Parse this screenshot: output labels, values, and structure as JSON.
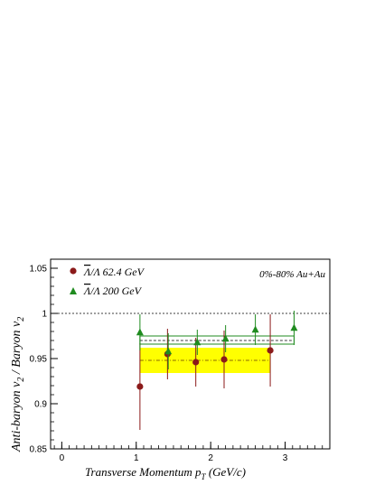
{
  "chart_data": {
    "type": "scatter",
    "xlabel_main": "Transverse Momentum p",
    "xlabel_sub": "T",
    "xlabel_unit": " (GeV/c)",
    "ylabel_a": "Anti-baryon v",
    "ylabel_a_sub": "2",
    "ylabel_b": " / Baryon v",
    "ylabel_b_sub": "2",
    "xlim": [
      -0.15,
      3.6
    ],
    "ylim": [
      0.85,
      1.06
    ],
    "xticks": [
      0,
      1,
      2,
      3
    ],
    "yticks": [
      0.85,
      0.9,
      0.95,
      1,
      1.05
    ],
    "ytick_labels": [
      "0.85",
      "0.9",
      "0.95",
      "1",
      "1.05"
    ],
    "annotation": "0%-80% Au+Au",
    "reference_line": 1.0,
    "series": [
      {
        "name": "Λ/Λ 62.4 GeV",
        "name_bar": "Λ",
        "name_rest": "/Λ 62.4 GeV",
        "marker": "circle",
        "color": "#8b1a1a",
        "x": [
          1.05,
          1.42,
          1.8,
          2.18,
          2.8
        ],
        "y": [
          0.919,
          0.955,
          0.946,
          0.949,
          0.959
        ],
        "yerr": [
          0.048,
          0.028,
          0.027,
          0.032,
          0.04
        ],
        "fit": {
          "x": [
            1.05,
            2.8
          ],
          "y": 0.948,
          "band": [
            0.934,
            0.962
          ],
          "color": "#ffff00"
        }
      },
      {
        "name": "Λ/Λ 200 GeV",
        "name_bar": "Λ",
        "name_rest": "/Λ 200 GeV",
        "marker": "triangle",
        "color": "#1f8b1f",
        "x": [
          1.05,
          1.43,
          1.82,
          2.2,
          2.6,
          3.12
        ],
        "y": [
          0.979,
          0.958,
          0.968,
          0.972,
          0.982,
          0.984
        ],
        "yerr": [
          0.02,
          0.02,
          0.014,
          0.015,
          0.017,
          0.019
        ],
        "fit": {
          "x": [
            1.05,
            3.12
          ],
          "y": 0.97,
          "band": [
            0.966,
            0.975
          ],
          "color": "#1f8b1f"
        }
      }
    ],
    "legend_position": "top-left"
  }
}
